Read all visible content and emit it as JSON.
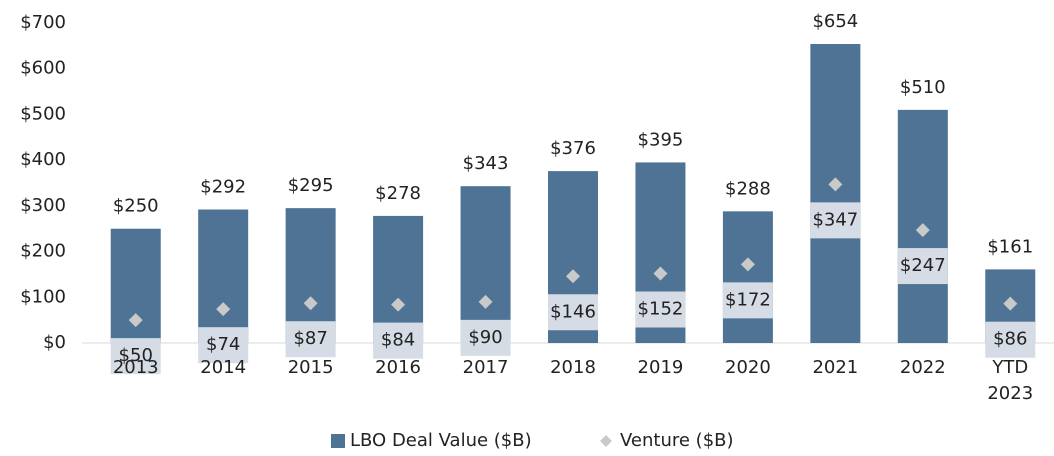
{
  "chart_data": {
    "type": "bar",
    "categories": [
      "2013",
      "2014",
      "2015",
      "2016",
      "2017",
      "2018",
      "2019",
      "2020",
      "2021",
      "2022",
      "YTD 2023"
    ],
    "series": [
      {
        "name": "LBO Deal Value ($B)",
        "color": "#4e7394",
        "values": [
          250,
          292,
          295,
          278,
          343,
          376,
          395,
          288,
          654,
          510,
          161
        ],
        "value_labels": [
          "$250",
          "$292",
          "$295",
          "$278",
          "$343",
          "$376",
          "$395",
          "$288",
          "$654",
          "$510",
          "$161"
        ]
      },
      {
        "name": "Venture  ($B)",
        "color": "#c9c9c9",
        "marker": "diamond",
        "values": [
          50,
          74,
          87,
          84,
          90,
          146,
          152,
          172,
          347,
          247,
          86
        ],
        "value_labels": [
          "$50",
          "$74",
          "$87",
          "$84",
          "$90",
          "$146",
          "$152",
          "$172",
          "$347",
          "$247",
          "$86"
        ]
      }
    ],
    "ylim": [
      0,
      700
    ],
    "yticks": [
      {
        "value": 0,
        "label": "$0"
      },
      {
        "value": 100,
        "label": "$100"
      },
      {
        "value": 200,
        "label": "$200"
      },
      {
        "value": 300,
        "label": "$300"
      },
      {
        "value": 400,
        "label": "$400"
      },
      {
        "value": 500,
        "label": "$500"
      },
      {
        "value": 600,
        "label": "$600"
      },
      {
        "value": 700,
        "label": "$700"
      }
    ],
    "grid": false,
    "legend": "bottom"
  }
}
